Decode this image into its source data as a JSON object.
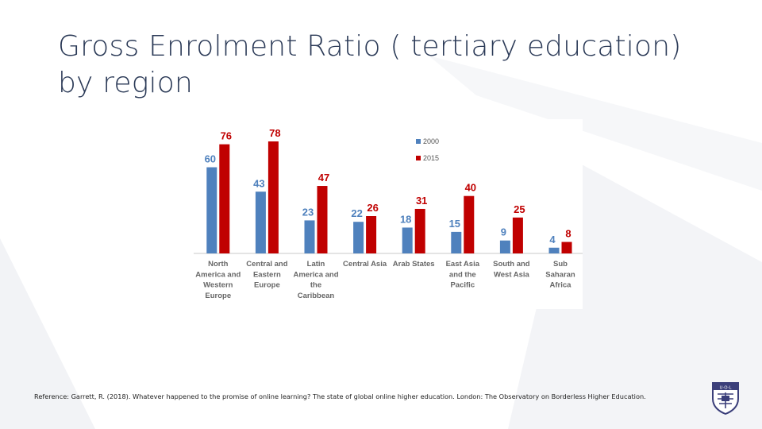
{
  "slide": {
    "title": "Gross Enrolment Ratio ( tertiary education) by region",
    "reference": "Reference: Garrett, R. (2018). Whatever happened to the promise of online learning? The state of global online higher education. London: The Observatory on Borderless Higher Education.",
    "logo_text": "U·O·L"
  },
  "colors": {
    "series_2000": "#4f81bd",
    "series_2015": "#c00000",
    "title": "#2b3a57"
  },
  "chart_data": {
    "type": "bar",
    "title": "",
    "xlabel": "",
    "ylabel": "",
    "ylim": [
      0,
      80
    ],
    "grid": false,
    "legend_position": "top-right",
    "categories": [
      [
        "North",
        "America and",
        "Western",
        "Europe"
      ],
      [
        "Central and",
        "Eastern",
        "Europe"
      ],
      [
        "Latin",
        "America and",
        "the",
        "Caribbean"
      ],
      [
        "Central Asia"
      ],
      [
        "Arab States"
      ],
      [
        "East Asia",
        "and the",
        "Pacific"
      ],
      [
        "South and",
        "West Asia"
      ],
      [
        "Sub",
        "Saharan",
        "Africa"
      ]
    ],
    "series": [
      {
        "name": "2000",
        "color": "#4f81bd",
        "values": [
          60,
          43,
          23,
          22,
          18,
          15,
          9,
          4
        ]
      },
      {
        "name": "2015",
        "color": "#c00000",
        "values": [
          76,
          78,
          47,
          26,
          31,
          40,
          25,
          8
        ]
      }
    ]
  }
}
